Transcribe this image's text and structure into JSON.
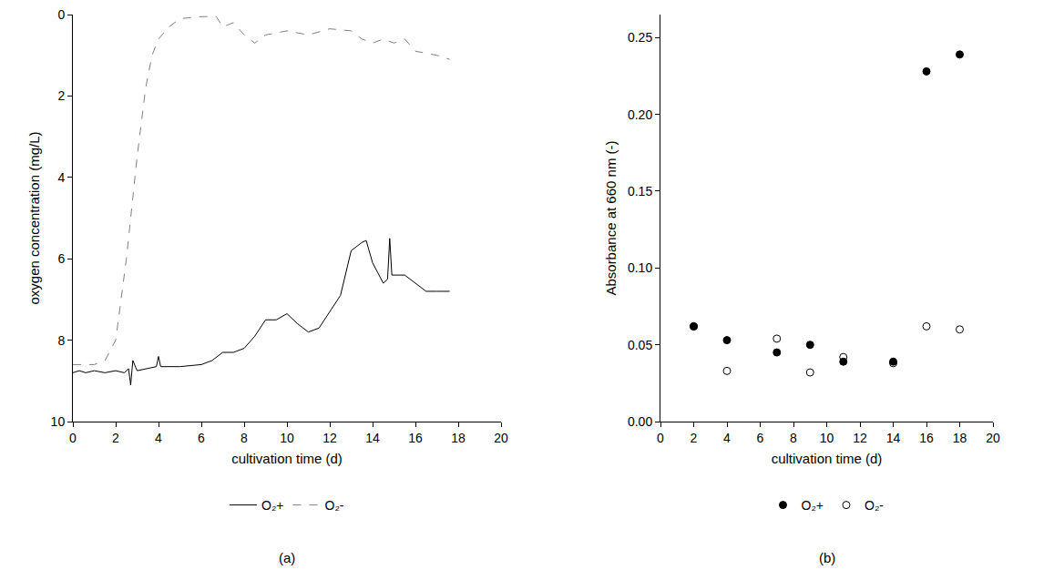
{
  "chart_data": [
    {
      "type": "line",
      "panel_label": "(a)",
      "x_label": "cultivation time (d)",
      "y_label": "oxygen concentration (mg/L)",
      "xlim": [
        0,
        20
      ],
      "xticks": [
        0,
        2,
        4,
        6,
        8,
        10,
        12,
        14,
        16,
        18,
        20
      ],
      "ylim": [
        10,
        0
      ],
      "yticks": [
        0,
        2,
        4,
        6,
        8,
        10
      ],
      "grid": false,
      "legend": "bottom",
      "series": [
        {
          "name": "O₂+",
          "color": "#000000",
          "line_style": "solid",
          "x": [
            0,
            0.3,
            0.6,
            1,
            1.5,
            2,
            2.4,
            2.6,
            2.7,
            2.8,
            3,
            3.5,
            3.9,
            4,
            4.1,
            5,
            6,
            6.5,
            7,
            7.5,
            8,
            8.5,
            9,
            9.5,
            10,
            10.5,
            11,
            11.5,
            12,
            12.5,
            13,
            13.5,
            13.7,
            14,
            14.5,
            14.7,
            14.8,
            14.9,
            15.5,
            16,
            16.5,
            17,
            17.6
          ],
          "values": [
            8.8,
            8.75,
            8.8,
            8.75,
            8.8,
            8.75,
            8.8,
            8.7,
            9.1,
            8.5,
            8.75,
            8.7,
            8.65,
            8.4,
            8.65,
            8.65,
            8.6,
            8.5,
            8.3,
            8.3,
            8.2,
            7.9,
            7.5,
            7.5,
            7.35,
            7.6,
            7.8,
            7.7,
            7.3,
            6.9,
            5.8,
            5.6,
            5.55,
            6.1,
            6.6,
            6.5,
            5.5,
            6.4,
            6.4,
            6.6,
            6.8,
            6.8,
            6.8
          ]
        },
        {
          "name": "O₂-",
          "color": "#808080",
          "line_style": "dash",
          "x": [
            0,
            1,
            1.5,
            2,
            2.5,
            3,
            3.4,
            3.7,
            4,
            4.5,
            5,
            6,
            6.7,
            7,
            7.5,
            8,
            8.5,
            9,
            10,
            11,
            12,
            13,
            13.5,
            14,
            14.5,
            15,
            15.5,
            16,
            17,
            17.6
          ],
          "values": [
            8.6,
            8.6,
            8.5,
            8.0,
            6.0,
            3.5,
            1.8,
            1.0,
            0.6,
            0.3,
            0.1,
            0.05,
            0.05,
            0.3,
            0.2,
            0.5,
            0.7,
            0.5,
            0.4,
            0.5,
            0.35,
            0.4,
            0.6,
            0.7,
            0.6,
            0.7,
            0.6,
            0.9,
            1.0,
            1.1
          ]
        }
      ]
    },
    {
      "type": "scatter",
      "panel_label": "(b)",
      "x_label": "cultivation time (d)",
      "y_label": "Absorbance at 660 nm (-)",
      "xlim": [
        0,
        20
      ],
      "xticks": [
        0,
        2,
        4,
        6,
        8,
        10,
        12,
        14,
        16,
        18,
        20
      ],
      "ylim": [
        0,
        0.265
      ],
      "yticks": [
        {
          "value": 0,
          "label": "0.00"
        },
        {
          "value": 0.05,
          "label": "0.05"
        },
        {
          "value": 0.1,
          "label": "0.10"
        },
        {
          "value": 0.15,
          "label": "0.15"
        },
        {
          "value": 0.2,
          "label": "0.20"
        },
        {
          "value": 0.25,
          "label": "0.25"
        }
      ],
      "grid": false,
      "legend": "bottom",
      "series": [
        {
          "name": "O₂+",
          "color": "#000000",
          "marker": "circle",
          "x": [
            2,
            4,
            7,
            9,
            11,
            14,
            16,
            18
          ],
          "values": [
            0.062,
            0.053,
            0.045,
            0.05,
            0.039,
            0.039,
            0.228,
            0.239
          ]
        },
        {
          "name": "O₂-",
          "color": "#000000",
          "marker": "circle-open",
          "x": [
            2,
            4,
            7,
            9,
            11,
            14,
            16,
            18
          ],
          "values": [
            0.062,
            0.033,
            0.054,
            0.032,
            0.042,
            0.038,
            0.062,
            0.06
          ]
        }
      ]
    }
  ]
}
